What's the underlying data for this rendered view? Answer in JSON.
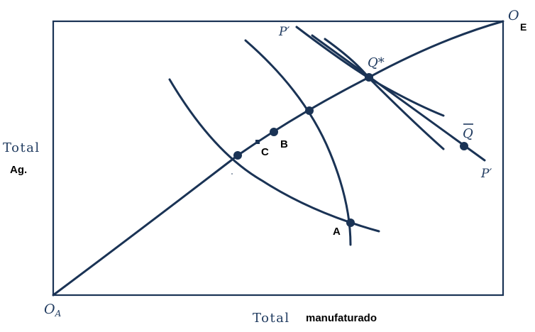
{
  "diagram": {
    "origin_a": {
      "letter": "O",
      "sub": "A"
    },
    "origin_e": {
      "letter": "O",
      "sub": "E"
    },
    "y_axis_label_line1": "Total",
    "y_axis_label_line2": "Ag.",
    "x_axis_label_part1": "Total",
    "x_axis_label_part2": "manufaturado",
    "price_line_top": "P′",
    "price_line_bottom": "P′",
    "point_q_star": "Q*",
    "point_q_bar": "Q",
    "point_a": "A",
    "point_b": "B",
    "point_c": "C",
    "colors": {
      "ink": "#1a3355",
      "label": "#1f3a5f",
      "bold_label": "#000000"
    }
  }
}
